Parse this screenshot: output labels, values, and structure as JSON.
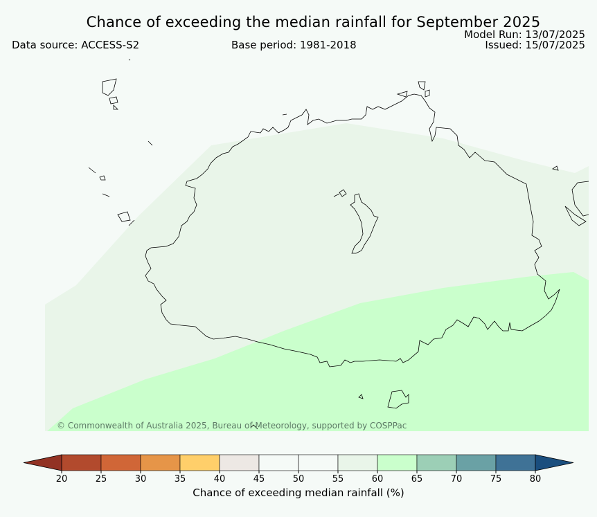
{
  "title": "Chance of exceeding the median rainfall for September 2025",
  "data_source": "Data source: ACCESS-S2",
  "base_period": "Base period: 1981-2018",
  "model_run": "Model Run: 13/07/2025",
  "issued": "Issued: 15/07/2025",
  "credit": "© Commonwealth of Australia 2025, Bureau of Meteorology, supported by COSPPac",
  "colorbar": {
    "label": "Chance of exceeding median rainfall (%)",
    "ticks": [
      "20",
      "25",
      "30",
      "35",
      "40",
      "45",
      "50",
      "55",
      "60",
      "65",
      "70",
      "75",
      "80"
    ],
    "bins": [
      {
        "range": "20-25",
        "color": "#b24a2d"
      },
      {
        "range": "25-30",
        "color": "#d06637"
      },
      {
        "range": "30-35",
        "color": "#e69548"
      },
      {
        "range": "35-40",
        "color": "#ffcf6a"
      },
      {
        "range": "40-45",
        "color": "#ede8e4"
      },
      {
        "range": "45-50",
        "color": "#f5faf7"
      },
      {
        "range": "50-55",
        "color": "#f5faf7"
      },
      {
        "range": "55-60",
        "color": "#e9f5e9"
      },
      {
        "range": "60-65",
        "color": "#caffcc"
      },
      {
        "range": "65-70",
        "color": "#9ccfb6"
      },
      {
        "range": "70-75",
        "color": "#6aa1a5"
      },
      {
        "range": "75-80",
        "color": "#3f7296"
      }
    ],
    "under_color": "#923224",
    "over_color": "#1a4e7e"
  },
  "map_categories": [
    {
      "range": "50-55",
      "color": "#f5faf7"
    },
    {
      "range": "55-60",
      "color": "#e9f5e9"
    },
    {
      "range": "60-65",
      "color": "#caffcc"
    }
  ]
}
